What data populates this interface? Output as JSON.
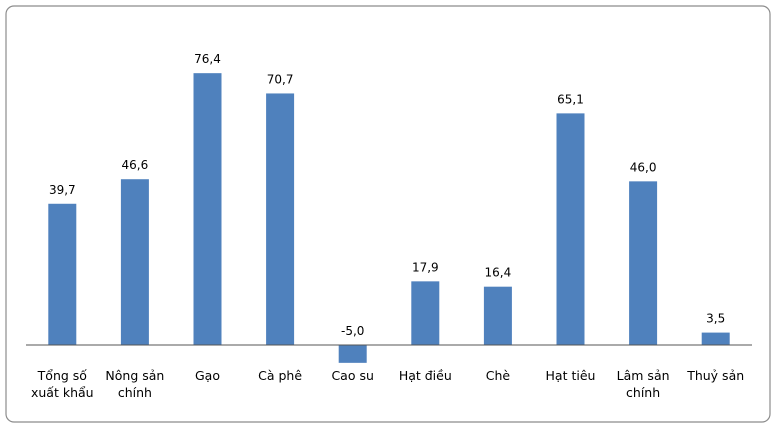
{
  "chart_data": {
    "type": "bar",
    "categories": [
      "Tổng số xuất khẩu",
      "Nông sản chính",
      "Gạo",
      "Cà phê",
      "Cao su",
      "Hạt điều",
      "Chè",
      "Hạt tiêu",
      "Lâm sản chính",
      "Thuỷ sản"
    ],
    "values": [
      39.7,
      46.6,
      76.4,
      70.7,
      -5.0,
      17.9,
      16.4,
      65.1,
      46.0,
      3.5
    ],
    "value_labels": [
      "39,7",
      "46,6",
      "76,4",
      "70,7",
      "-5,0",
      "17,9",
      "16,4",
      "65,1",
      "46,0",
      "3,5"
    ],
    "color": "#4f81bd",
    "ylim": [
      -6,
      86
    ]
  }
}
